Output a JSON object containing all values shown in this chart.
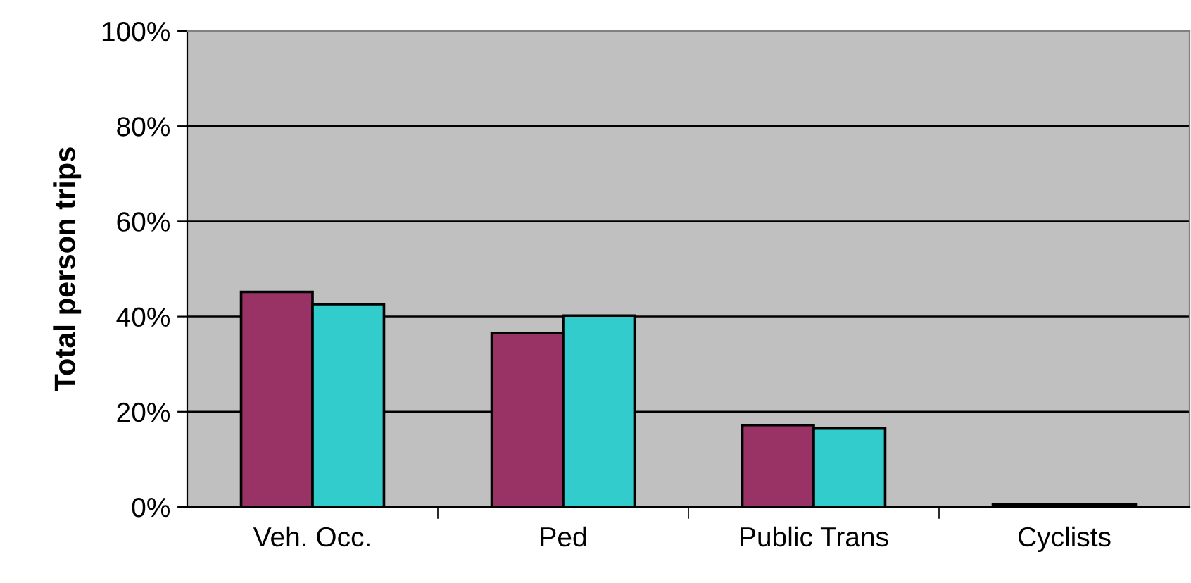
{
  "chart_data": {
    "type": "bar",
    "ylabel": "Total person trips",
    "categories": [
      "Veh. Occ.",
      "Ped",
      "Public Trans",
      "Cyclists"
    ],
    "series": [
      {
        "color": "#993366",
        "values": [
          45.2,
          36.5,
          17.2,
          0.5
        ]
      },
      {
        "color": "#33cccc",
        "values": [
          42.6,
          40.2,
          16.6,
          0.5
        ]
      }
    ],
    "ylim": [
      0,
      100
    ],
    "yticks": [
      {
        "value": 0,
        "label": "0%"
      },
      {
        "value": 20,
        "label": "20%"
      },
      {
        "value": 40,
        "label": "40%"
      },
      {
        "value": 60,
        "label": "60%"
      },
      {
        "value": 80,
        "label": "80%"
      },
      {
        "value": 100,
        "label": "100%"
      }
    ],
    "grid": "y",
    "legend": false
  }
}
